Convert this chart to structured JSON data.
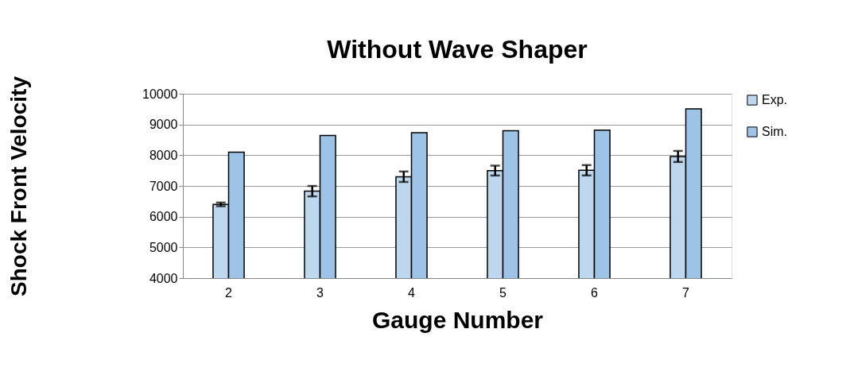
{
  "chart_data": {
    "type": "bar",
    "title": "Without Wave Shaper",
    "xlabel": "Gauge Number",
    "ylabel": "Shock Front Velocity",
    "categories": [
      "2",
      "3",
      "4",
      "5",
      "6",
      "7"
    ],
    "series": [
      {
        "name": "Exp.",
        "color": "#bdd7ee",
        "values": [
          6400,
          6830,
          7300,
          7500,
          7510,
          7960
        ],
        "errors": [
          60,
          170,
          170,
          160,
          170,
          180
        ]
      },
      {
        "name": "Sim.",
        "color": "#9dc3e6",
        "values": [
          8100,
          8640,
          8730,
          8800,
          8820,
          9510
        ]
      }
    ],
    "ylim": [
      4000,
      10000
    ],
    "yticks": [
      4000,
      5000,
      6000,
      7000,
      8000,
      9000,
      10000
    ],
    "grid": "y",
    "legend": "right"
  }
}
